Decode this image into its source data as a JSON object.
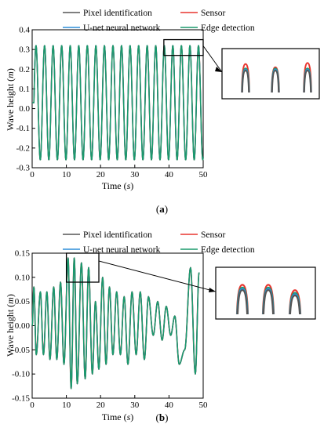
{
  "colors": {
    "pixel": "#555555",
    "sensor": "#e8352f",
    "unet": "#2d8ed8",
    "edge": "#1a9a6c"
  },
  "caption_a": {
    "open": "(",
    "letter": "a",
    "close": ")"
  },
  "caption_b": {
    "open": "(",
    "letter": "b",
    "close": ")"
  },
  "chart_data": [
    {
      "type": "line",
      "id": "a",
      "xlabel": "Time",
      "xlabel_unit": "s",
      "ylabel": "Wave height",
      "ylabel_unit": "m",
      "xlim": [
        0,
        50
      ],
      "ylim": [
        -0.3,
        0.4
      ],
      "xticks": [
        "0",
        "10",
        "20",
        "30",
        "40",
        "50"
      ],
      "yticks": [
        "-0.3",
        "-0.2",
        "-0.1",
        "0.0",
        "0.1",
        "0.2",
        "0.3",
        "0.4"
      ],
      "legend_placement": "top",
      "grid": false,
      "series": [
        {
          "name": "Pixel identification",
          "color_key": "pixel"
        },
        {
          "name": "U-net neural network",
          "color_key": "unet"
        },
        {
          "name": "Sensor",
          "color_key": "sensor"
        },
        {
          "name": "Edge detection",
          "color_key": "edge"
        }
      ],
      "wave": {
        "period_s": 2.5,
        "crest_m": 0.32,
        "trough_m": -0.26,
        "start_s": 0.5
      },
      "zoom_box": {
        "x": [
          38.5,
          50
        ],
        "y": [
          0.27,
          0.35
        ]
      },
      "inset_peak_offsets_m": {
        "sensor": [
          0.26,
          0.23,
          0.27
        ],
        "edge": [
          0.22,
          0.22,
          0.22
        ],
        "unet": [
          0.21,
          0.21,
          0.21
        ],
        "pixel": [
          0.2,
          0.2,
          0.2
        ]
      }
    },
    {
      "type": "line",
      "id": "b",
      "xlabel": "Time",
      "xlabel_unit": "s",
      "ylabel": "Wave height",
      "ylabel_unit": "m",
      "xlim": [
        0,
        50
      ],
      "ylim": [
        -0.15,
        0.15
      ],
      "xticks": [
        "0",
        "10",
        "20",
        "30",
        "40",
        "50"
      ],
      "yticks": [
        "-0.15",
        "-0.10",
        "-0.05",
        "0.00",
        "0.05",
        "0.10",
        "0.15"
      ],
      "legend_placement": "top",
      "grid": false,
      "series": [
        {
          "name": "Pixel identification",
          "color_key": "pixel"
        },
        {
          "name": "U-net neural network",
          "color_key": "unet"
        },
        {
          "name": "Sensor",
          "color_key": "sensor"
        },
        {
          "name": "Edge detection",
          "color_key": "edge"
        }
      ],
      "x": [
        0,
        0.5,
        1.2,
        2.4,
        3.3,
        4.3,
        5.2,
        6.3,
        7.2,
        8.3,
        9.3,
        10.5,
        11.4,
        12.3,
        13.2,
        14.4,
        15.5,
        16.5,
        17.6,
        18.5,
        19.5,
        20.6,
        21.6,
        22.6,
        23.6,
        24.7,
        25.8,
        26.9,
        28.0,
        29.2,
        30.4,
        31.6,
        32.8,
        34.0,
        35.4,
        36.7,
        38.0,
        39.2,
        40.5,
        41.7,
        43.0,
        44.6,
        46.3,
        47.7,
        48.8
      ],
      "y": [
        0.0,
        0.08,
        -0.06,
        0.07,
        -0.06,
        0.07,
        -0.07,
        0.08,
        -0.07,
        0.09,
        -0.08,
        0.14,
        -0.13,
        0.14,
        -0.12,
        0.13,
        -0.11,
        0.12,
        -0.1,
        0.05,
        -0.09,
        0.1,
        -0.08,
        0.08,
        -0.06,
        0.07,
        -0.06,
        0.06,
        -0.08,
        0.07,
        -0.06,
        0.07,
        -0.07,
        0.06,
        -0.02,
        0.05,
        -0.03,
        0.04,
        -0.02,
        0.02,
        -0.08,
        -0.05,
        0.12,
        -0.1,
        0.11
      ],
      "zoom_box": {
        "x": [
          10,
          19.5
        ],
        "y": [
          0.09,
          0.15
        ]
      },
      "inset_peak_offsets_m": {
        "sensor": [
          0.14,
          0.14,
          0.12
        ],
        "edge": [
          0.13,
          0.13,
          0.11
        ],
        "unet": [
          0.125,
          0.125,
          0.105
        ],
        "pixel": [
          0.12,
          0.12,
          0.1
        ]
      }
    }
  ]
}
